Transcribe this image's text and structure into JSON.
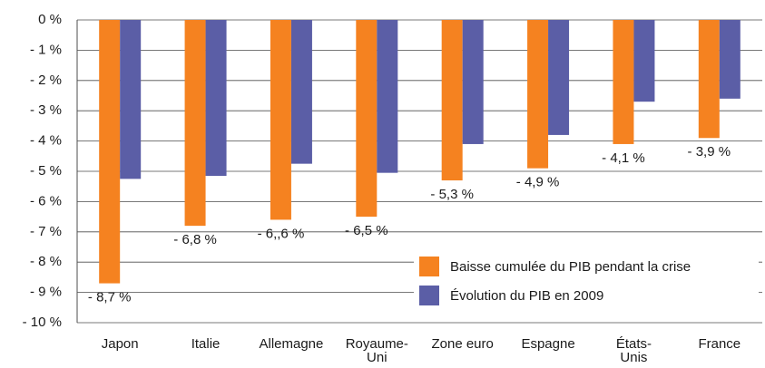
{
  "chart_data": {
    "type": "bar",
    "categories": [
      "Japon",
      "Italie",
      "Allemagne",
      "Royaume-Uni",
      "Zone euro",
      "Espagne",
      "États-Unis",
      "France"
    ],
    "series": [
      {
        "name": "Baisse cumulée du PIB pendant la crise",
        "color": "#f58220",
        "values": [
          -8.7,
          -6.8,
          -6.6,
          -6.5,
          -5.3,
          -4.9,
          -4.1,
          -3.9
        ],
        "value_labels": [
          "- 8,7 %",
          "- 6,8 %",
          "- 6,,6 %",
          "- 6,5 %",
          "- 5,3 %",
          "- 4,9 %",
          "- 4,1 %",
          "- 3,9 %"
        ]
      },
      {
        "name": "Évolution du PIB en 2009",
        "color": "#5b5ea6",
        "values": [
          -5.25,
          -5.15,
          -4.75,
          -5.05,
          -4.1,
          -3.8,
          -2.7,
          -2.6
        ]
      }
    ],
    "ylim": [
      -10,
      0
    ],
    "yticks": [
      {
        "value": 0,
        "label": "0 %"
      },
      {
        "value": -1,
        "label": "- 1 %"
      },
      {
        "value": -2,
        "label": "- 2 %"
      },
      {
        "value": -3,
        "label": "- 3 %"
      },
      {
        "value": -4,
        "label": "- 4 %"
      },
      {
        "value": -5,
        "label": "- 5 %"
      },
      {
        "value": -6,
        "label": "- 6 %"
      },
      {
        "value": -7,
        "label": "- 7 %"
      },
      {
        "value": -8,
        "label": "- 8 %"
      },
      {
        "value": -9,
        "label": "- 9 %"
      },
      {
        "value": -10,
        "label": "- 10 %"
      }
    ],
    "grid": true,
    "legend": "bottom-right"
  }
}
